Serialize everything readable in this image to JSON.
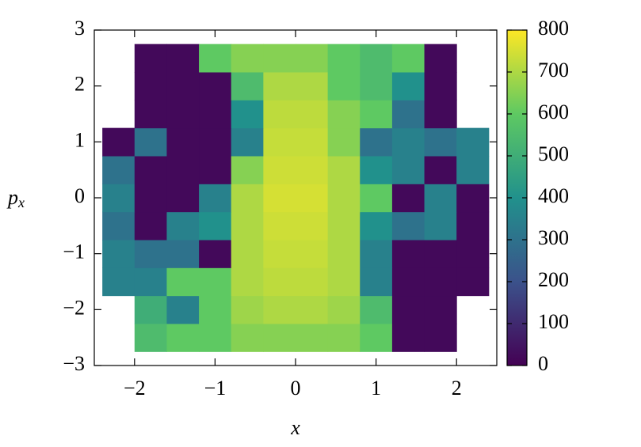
{
  "chart_data": {
    "type": "heatmap",
    "xlabel": "x",
    "ylabel": [
      "p",
      "x"
    ],
    "xlim": [
      -2.5,
      2.5
    ],
    "ylim": [
      -3,
      3
    ],
    "xticks": [
      {
        "value": -2,
        "label": "−2"
      },
      {
        "value": -1,
        "label": "−1"
      },
      0,
      1,
      2
    ],
    "yticks": [
      {
        "value": -3,
        "label": "−3"
      },
      {
        "value": -2,
        "label": "−2"
      },
      {
        "value": -1,
        "label": "−1"
      },
      0,
      1,
      2,
      3
    ],
    "x": [
      -2.2,
      -1.8,
      -1.4,
      -1.0,
      -0.6,
      -0.2,
      0.2,
      0.6,
      1.0,
      1.4,
      1.8,
      2.2
    ],
    "y": [
      -2.5,
      -2.0,
      -1.5,
      -1.0,
      -0.5,
      0,
      0.5,
      1.0,
      1.5,
      2.0,
      2.5
    ],
    "z": [
      [
        null,
        550,
        600,
        600,
        650,
        650,
        650,
        650,
        600,
        20,
        20,
        null
      ],
      [
        null,
        500,
        350,
        600,
        680,
        700,
        700,
        680,
        550,
        20,
        20,
        null
      ],
      [
        350,
        350,
        600,
        600,
        700,
        720,
        720,
        700,
        350,
        20,
        20,
        20
      ],
      [
        350,
        300,
        300,
        20,
        700,
        730,
        730,
        700,
        350,
        20,
        20,
        20
      ],
      [
        300,
        20,
        350,
        400,
        700,
        740,
        740,
        700,
        400,
        300,
        350,
        20
      ],
      [
        350,
        20,
        20,
        350,
        700,
        750,
        750,
        700,
        600,
        20,
        350,
        20
      ],
      [
        300,
        20,
        20,
        20,
        650,
        740,
        740,
        700,
        400,
        350,
        20,
        350
      ],
      [
        20,
        300,
        20,
        20,
        350,
        730,
        730,
        650,
        300,
        350,
        300,
        350
      ],
      [
        null,
        20,
        20,
        20,
        400,
        720,
        720,
        650,
        600,
        300,
        20,
        null
      ],
      [
        null,
        20,
        20,
        20,
        550,
        700,
        700,
        600,
        550,
        400,
        20,
        null
      ],
      [
        null,
        20,
        20,
        600,
        650,
        650,
        650,
        600,
        550,
        600,
        20,
        null
      ]
    ],
    "zlim": [
      0,
      800
    ],
    "zticks": [
      0,
      100,
      200,
      300,
      400,
      500,
      600,
      700,
      800
    ],
    "colormap": [
      "#440154",
      "#3b528b",
      "#21918c",
      "#5ec962",
      "#fde725"
    ]
  }
}
